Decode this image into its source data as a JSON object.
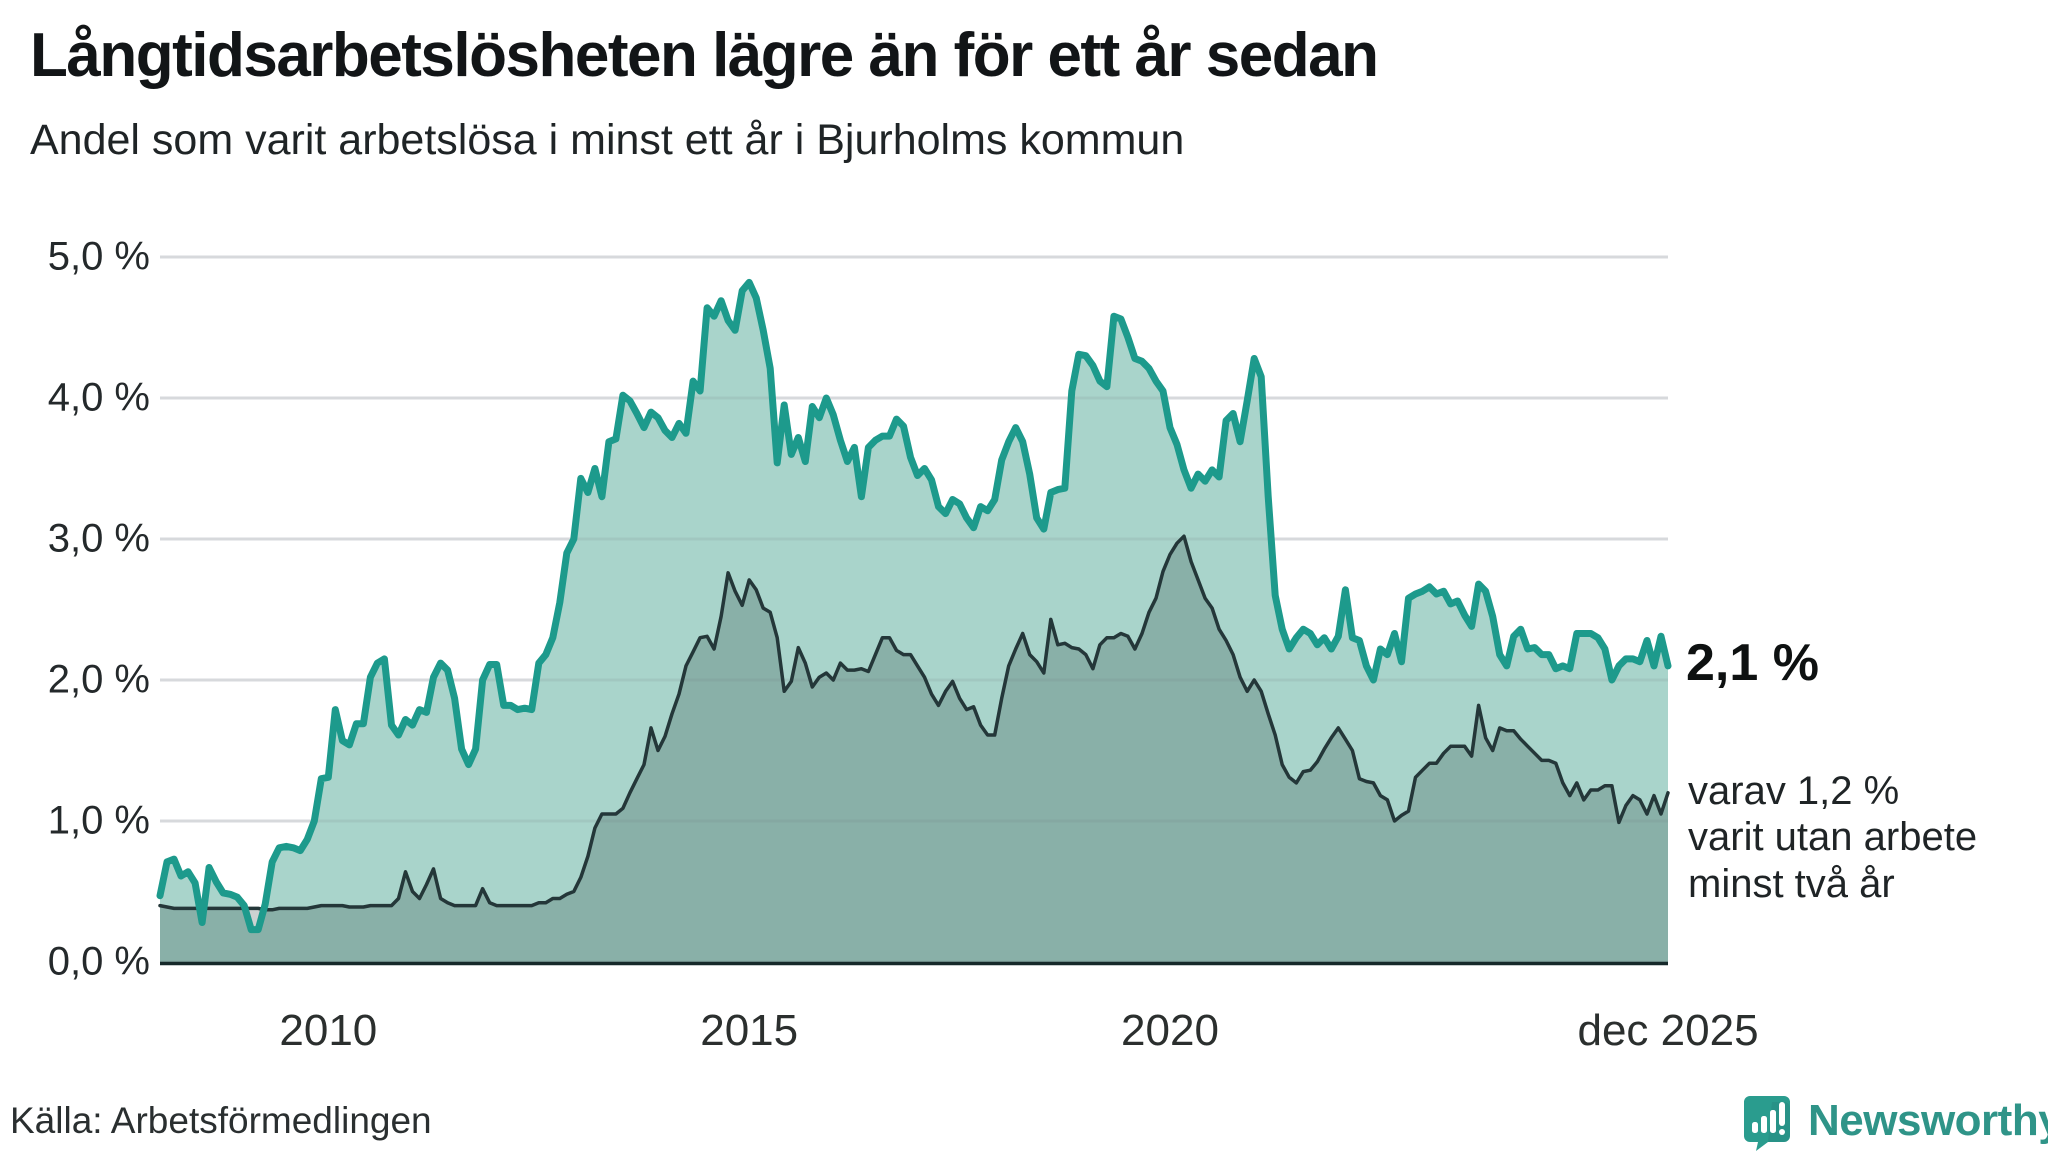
{
  "header": {
    "title": "Långtidsarbetslösheten lägre än för ett år sedan",
    "subtitle": "Andel som varit arbetslösa i minst ett år i Bjurholms kommun"
  },
  "annotation": {
    "value_label": "2,1 %",
    "note_lines": [
      "varav 1,2 %",
      "varit utan arbete",
      "minst två år"
    ]
  },
  "footer": {
    "source": "Källa: Arbetsförmedlingen",
    "brand": "Newsworthy"
  },
  "chart_data": {
    "type": "area",
    "title": "Långtidsarbetslösheten lägre än för ett år sedan",
    "subtitle": "Andel som varit arbetslösa i minst ett år i Bjurholms kommun",
    "x_start": "2008-01",
    "x_end": "2025-12",
    "points_per_year": 12,
    "ylim": [
      0,
      5
    ],
    "grid": true,
    "colors": {
      "grid": "#e8e9ec",
      "axis": "#16292a",
      "long_line": "#1d9a8c",
      "long_fill": "#a9d4cb",
      "very_long_line": "#243739",
      "very_long_fill": "rgba(23,48,45,0.22)"
    },
    "y_ticks": [
      {
        "v": 5,
        "label": "5,0 %"
      },
      {
        "v": 4,
        "label": "4,0 %"
      },
      {
        "v": 3,
        "label": "3,0 %"
      },
      {
        "v": 2,
        "label": "2,0 %"
      },
      {
        "v": 1,
        "label": "1,0 %"
      },
      {
        "v": 0,
        "label": "0,0 %"
      }
    ],
    "x_ticks": [
      {
        "t": 2010.0,
        "label": "2010"
      },
      {
        "t": 2015.0,
        "label": "2015"
      },
      {
        "t": 2020.0,
        "label": "2020"
      },
      {
        "t": 2025.917,
        "label": "dec 2025"
      }
    ],
    "series": [
      {
        "name": "Arbetslösa minst ett år",
        "end_label": "2,1 %",
        "values": [
          0.47,
          0.71,
          0.73,
          0.61,
          0.64,
          0.56,
          0.28,
          0.67,
          0.57,
          0.49,
          0.48,
          0.46,
          0.4,
          0.23,
          0.23,
          0.41,
          0.71,
          0.81,
          0.82,
          0.81,
          0.79,
          0.87,
          1.0,
          1.3,
          1.31,
          1.79,
          1.57,
          1.54,
          1.69,
          1.69,
          2.02,
          2.12,
          2.15,
          1.68,
          1.61,
          1.72,
          1.68,
          1.79,
          1.77,
          2.02,
          2.12,
          2.07,
          1.87,
          1.51,
          1.4,
          1.51,
          2.0,
          2.11,
          2.11,
          1.82,
          1.82,
          1.79,
          1.8,
          1.79,
          2.12,
          2.18,
          2.3,
          2.55,
          2.9,
          3.0,
          3.43,
          3.33,
          3.5,
          3.3,
          3.69,
          3.71,
          4.02,
          3.98,
          3.89,
          3.79,
          3.9,
          3.86,
          3.77,
          3.72,
          3.82,
          3.75,
          4.12,
          4.05,
          4.64,
          4.58,
          4.69,
          4.55,
          4.48,
          4.76,
          4.82,
          4.71,
          4.48,
          4.21,
          3.54,
          3.95,
          3.6,
          3.72,
          3.55,
          3.94,
          3.86,
          4.0,
          3.88,
          3.7,
          3.55,
          3.65,
          3.3,
          3.65,
          3.7,
          3.73,
          3.73,
          3.85,
          3.8,
          3.58,
          3.45,
          3.5,
          3.42,
          3.23,
          3.18,
          3.28,
          3.25,
          3.15,
          3.08,
          3.23,
          3.2,
          3.28,
          3.56,
          3.69,
          3.79,
          3.69,
          3.46,
          3.15,
          3.07,
          3.33,
          3.35,
          3.36,
          4.05,
          4.31,
          4.3,
          4.23,
          4.12,
          4.08,
          4.58,
          4.56,
          4.43,
          4.28,
          4.26,
          4.21,
          4.12,
          4.05,
          3.79,
          3.67,
          3.49,
          3.36,
          3.46,
          3.41,
          3.49,
          3.44,
          3.84,
          3.89,
          3.69,
          3.98,
          4.28,
          4.15,
          3.3,
          2.6,
          2.36,
          2.22,
          2.3,
          2.36,
          2.33,
          2.25,
          2.3,
          2.22,
          2.31,
          2.64,
          2.3,
          2.28,
          2.1,
          2.0,
          2.22,
          2.18,
          2.33,
          2.13,
          2.58,
          2.61,
          2.63,
          2.66,
          2.61,
          2.63,
          2.54,
          2.56,
          2.46,
          2.38,
          2.68,
          2.63,
          2.45,
          2.18,
          2.1,
          2.31,
          2.36,
          2.22,
          2.23,
          2.18,
          2.18,
          2.08,
          2.1,
          2.08,
          2.33,
          2.33,
          2.33,
          2.3,
          2.22,
          2.0,
          2.1,
          2.15,
          2.15,
          2.13,
          2.28,
          2.1,
          2.31,
          2.1
        ]
      },
      {
        "name": "Arbetslösa minst två år",
        "end_label": "1,2 %",
        "values": [
          0.4,
          0.39,
          0.38,
          0.38,
          0.38,
          0.38,
          0.38,
          0.38,
          0.38,
          0.38,
          0.38,
          0.38,
          0.38,
          0.38,
          0.38,
          0.37,
          0.37,
          0.38,
          0.38,
          0.38,
          0.38,
          0.38,
          0.39,
          0.4,
          0.4,
          0.4,
          0.4,
          0.39,
          0.39,
          0.39,
          0.4,
          0.4,
          0.4,
          0.4,
          0.45,
          0.64,
          0.5,
          0.45,
          0.55,
          0.66,
          0.45,
          0.42,
          0.4,
          0.4,
          0.4,
          0.4,
          0.52,
          0.42,
          0.4,
          0.4,
          0.4,
          0.4,
          0.4,
          0.4,
          0.42,
          0.42,
          0.45,
          0.45,
          0.48,
          0.5,
          0.6,
          0.75,
          0.95,
          1.05,
          1.05,
          1.05,
          1.09,
          1.2,
          1.3,
          1.4,
          1.66,
          1.5,
          1.6,
          1.76,
          1.9,
          2.1,
          2.2,
          2.3,
          2.31,
          2.22,
          2.45,
          2.76,
          2.63,
          2.53,
          2.71,
          2.64,
          2.51,
          2.48,
          2.3,
          1.92,
          1.99,
          2.23,
          2.12,
          1.95,
          2.02,
          2.05,
          2.0,
          2.12,
          2.07,
          2.07,
          2.08,
          2.06,
          2.18,
          2.3,
          2.3,
          2.21,
          2.18,
          2.18,
          2.1,
          2.02,
          1.9,
          1.82,
          1.92,
          1.99,
          1.87,
          1.79,
          1.81,
          1.68,
          1.61,
          1.61,
          1.87,
          2.1,
          2.22,
          2.33,
          2.18,
          2.13,
          2.05,
          2.43,
          2.25,
          2.26,
          2.23,
          2.22,
          2.18,
          2.08,
          2.25,
          2.3,
          2.3,
          2.33,
          2.31,
          2.22,
          2.33,
          2.48,
          2.58,
          2.77,
          2.89,
          2.97,
          3.02,
          2.84,
          2.71,
          2.58,
          2.51,
          2.36,
          2.28,
          2.18,
          2.02,
          1.92,
          2.0,
          1.92,
          1.76,
          1.61,
          1.4,
          1.31,
          1.27,
          1.35,
          1.36,
          1.42,
          1.51,
          1.59,
          1.66,
          1.58,
          1.5,
          1.3,
          1.28,
          1.27,
          1.18,
          1.15,
          1.0,
          1.04,
          1.07,
          1.31,
          1.36,
          1.41,
          1.41,
          1.48,
          1.53,
          1.53,
          1.53,
          1.46,
          1.82,
          1.59,
          1.5,
          1.66,
          1.64,
          1.64,
          1.58,
          1.53,
          1.48,
          1.43,
          1.43,
          1.41,
          1.27,
          1.18,
          1.27,
          1.15,
          1.22,
          1.22,
          1.25,
          1.25,
          0.99,
          1.11,
          1.18,
          1.15,
          1.05,
          1.18,
          1.05,
          1.2
        ]
      }
    ]
  }
}
